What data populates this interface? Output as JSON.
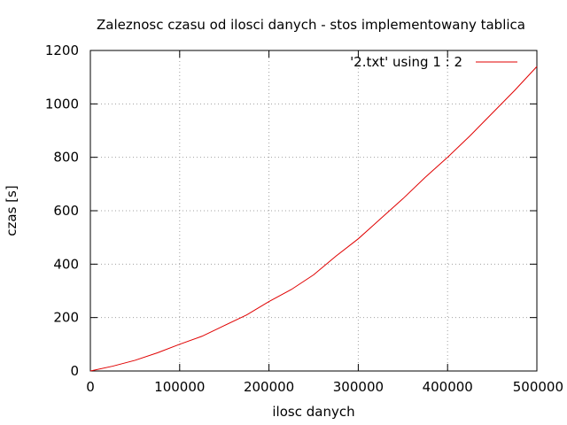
{
  "chart_data": {
    "type": "line",
    "title": "Zaleznosc czasu od ilosci danych - stos implementowany tablica",
    "xlabel": "ilosc danych",
    "ylabel": "czas [s]",
    "xlim": [
      0,
      500000
    ],
    "ylim": [
      0,
      1200
    ],
    "x_ticks": [
      0,
      100000,
      200000,
      300000,
      400000,
      500000
    ],
    "y_ticks": [
      0,
      200,
      400,
      600,
      800,
      1000,
      1200
    ],
    "grid": true,
    "legend_position": "top-right",
    "series": [
      {
        "name": "'2.txt' using 1 : 2",
        "color": "#e00000",
        "x": [
          0,
          25000,
          50000,
          75000,
          100000,
          125000,
          150000,
          175000,
          200000,
          225000,
          250000,
          275000,
          300000,
          325000,
          350000,
          375000,
          400000,
          425000,
          450000,
          475000,
          500000
        ],
        "y": [
          0,
          18,
          40,
          68,
          100,
          130,
          170,
          210,
          260,
          305,
          360,
          430,
          495,
          570,
          645,
          725,
          800,
          880,
          965,
          1050,
          1140
        ]
      }
    ]
  }
}
